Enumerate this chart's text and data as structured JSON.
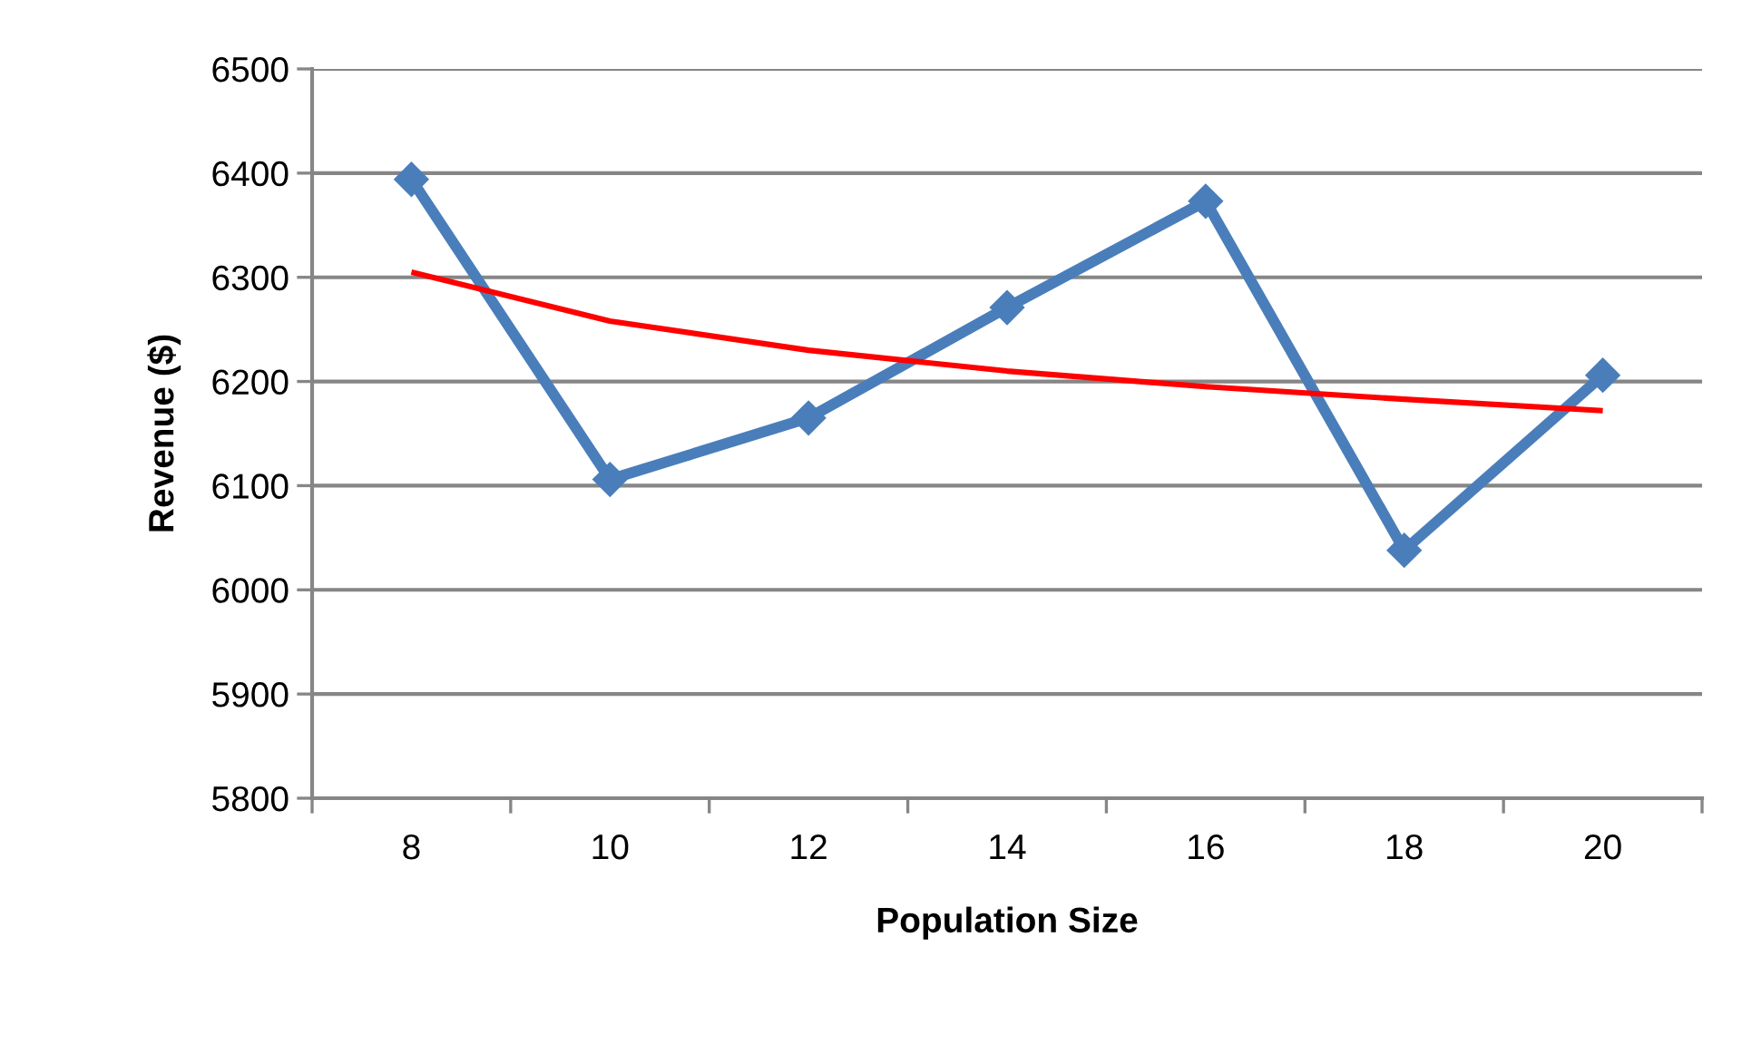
{
  "chart_data": {
    "type": "line",
    "xlabel": "Population Size",
    "ylabel": "Revenue ($)",
    "categories": [
      "8",
      "10",
      "12",
      "14",
      "16",
      "18",
      "20"
    ],
    "series": [
      {
        "color": "#4a7ebb",
        "marker": "diamond",
        "values": [
          6394,
          6106,
          6165,
          6271,
          6373,
          6038,
          6206
        ]
      },
      {
        "color": "#ff0000",
        "marker": "none",
        "values": [
          6305,
          6258,
          6230,
          6210,
          6195,
          6183,
          6172
        ]
      }
    ],
    "ylim": [
      5800,
      6500
    ],
    "yticks": [
      5800,
      5900,
      6000,
      6100,
      6200,
      6300,
      6400,
      6500
    ],
    "grid": "y",
    "line_style": "solid"
  }
}
